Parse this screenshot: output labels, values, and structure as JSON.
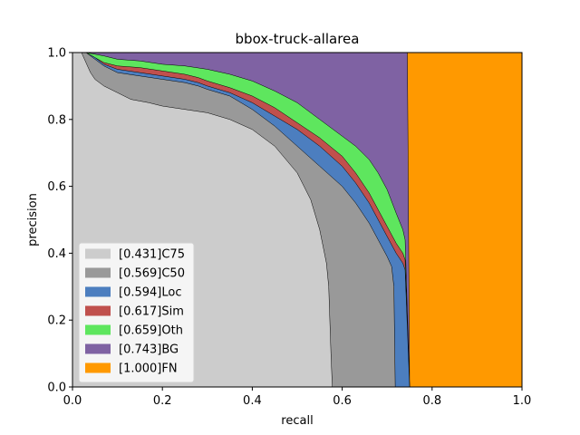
{
  "chart_data": {
    "type": "area",
    "title": "bbox-truck-allarea",
    "xlabel": "recall",
    "ylabel": "precision",
    "xlim": [
      0,
      1
    ],
    "ylim": [
      0,
      1
    ],
    "xticks": [
      "0.0",
      "0.2",
      "0.4",
      "0.6",
      "0.8",
      "1.0"
    ],
    "yticks": [
      "0.0",
      "0.2",
      "0.4",
      "0.6",
      "0.8",
      "1.0"
    ],
    "grid": false,
    "legend_position": "lower-left",
    "series": [
      {
        "name": "[0.431]C75",
        "color": "#cccccc",
        "points": [
          [
            0,
            1.0
          ],
          [
            0.02,
            1.0
          ],
          [
            0.03,
            0.97
          ],
          [
            0.04,
            0.94
          ],
          [
            0.05,
            0.92
          ],
          [
            0.07,
            0.9
          ],
          [
            0.1,
            0.88
          ],
          [
            0.13,
            0.86
          ],
          [
            0.17,
            0.85
          ],
          [
            0.2,
            0.84
          ],
          [
            0.25,
            0.83
          ],
          [
            0.3,
            0.82
          ],
          [
            0.35,
            0.8
          ],
          [
            0.4,
            0.77
          ],
          [
            0.45,
            0.72
          ],
          [
            0.5,
            0.64
          ],
          [
            0.53,
            0.56
          ],
          [
            0.55,
            0.47
          ],
          [
            0.565,
            0.37
          ],
          [
            0.57,
            0.3
          ],
          [
            0.575,
            0.1
          ],
          [
            0.578,
            0.0
          ]
        ]
      },
      {
        "name": "[0.569]C50",
        "color": "#999999",
        "points": [
          [
            0,
            1.0
          ],
          [
            0.03,
            1.0
          ],
          [
            0.05,
            0.98
          ],
          [
            0.07,
            0.96
          ],
          [
            0.1,
            0.94
          ],
          [
            0.15,
            0.93
          ],
          [
            0.2,
            0.92
          ],
          [
            0.25,
            0.91
          ],
          [
            0.28,
            0.9
          ],
          [
            0.3,
            0.89
          ],
          [
            0.35,
            0.87
          ],
          [
            0.4,
            0.83
          ],
          [
            0.45,
            0.78
          ],
          [
            0.5,
            0.72
          ],
          [
            0.55,
            0.66
          ],
          [
            0.6,
            0.6
          ],
          [
            0.63,
            0.55
          ],
          [
            0.66,
            0.49
          ],
          [
            0.68,
            0.44
          ],
          [
            0.7,
            0.39
          ],
          [
            0.71,
            0.36
          ],
          [
            0.715,
            0.3
          ],
          [
            0.718,
            0.0
          ]
        ]
      },
      {
        "name": "[0.594]Loc",
        "color": "#4c7ebf",
        "points": [
          [
            0,
            1.0
          ],
          [
            0.03,
            1.0
          ],
          [
            0.05,
            0.985
          ],
          [
            0.07,
            0.965
          ],
          [
            0.1,
            0.95
          ],
          [
            0.15,
            0.94
          ],
          [
            0.2,
            0.93
          ],
          [
            0.25,
            0.92
          ],
          [
            0.28,
            0.91
          ],
          [
            0.3,
            0.9
          ],
          [
            0.35,
            0.88
          ],
          [
            0.4,
            0.85
          ],
          [
            0.45,
            0.81
          ],
          [
            0.5,
            0.77
          ],
          [
            0.55,
            0.72
          ],
          [
            0.6,
            0.66
          ],
          [
            0.63,
            0.61
          ],
          [
            0.66,
            0.55
          ],
          [
            0.68,
            0.5
          ],
          [
            0.7,
            0.45
          ],
          [
            0.72,
            0.4
          ],
          [
            0.735,
            0.37
          ],
          [
            0.74,
            0.35
          ],
          [
            0.75,
            0.0
          ]
        ]
      },
      {
        "name": "[0.617]Sim",
        "color": "#c0504d",
        "points": [
          [
            0,
            1.0
          ],
          [
            0.03,
            1.0
          ],
          [
            0.05,
            0.985
          ],
          [
            0.07,
            0.97
          ],
          [
            0.1,
            0.96
          ],
          [
            0.15,
            0.955
          ],
          [
            0.2,
            0.945
          ],
          [
            0.25,
            0.935
          ],
          [
            0.28,
            0.925
          ],
          [
            0.3,
            0.915
          ],
          [
            0.35,
            0.895
          ],
          [
            0.4,
            0.87
          ],
          [
            0.45,
            0.835
          ],
          [
            0.5,
            0.79
          ],
          [
            0.55,
            0.745
          ],
          [
            0.6,
            0.69
          ],
          [
            0.63,
            0.64
          ],
          [
            0.66,
            0.58
          ],
          [
            0.68,
            0.53
          ],
          [
            0.7,
            0.48
          ],
          [
            0.72,
            0.43
          ],
          [
            0.735,
            0.4
          ],
          [
            0.74,
            0.38
          ],
          [
            0.75,
            0.0
          ]
        ]
      },
      {
        "name": "[0.659]Oth",
        "color": "#5ee65e",
        "points": [
          [
            0,
            1.0
          ],
          [
            0.03,
            1.0
          ],
          [
            0.05,
            0.995
          ],
          [
            0.07,
            0.99
          ],
          [
            0.1,
            0.98
          ],
          [
            0.15,
            0.975
          ],
          [
            0.2,
            0.965
          ],
          [
            0.25,
            0.96
          ],
          [
            0.3,
            0.95
          ],
          [
            0.35,
            0.935
          ],
          [
            0.4,
            0.915
          ],
          [
            0.45,
            0.885
          ],
          [
            0.5,
            0.85
          ],
          [
            0.55,
            0.8
          ],
          [
            0.6,
            0.75
          ],
          [
            0.63,
            0.72
          ],
          [
            0.66,
            0.68
          ],
          [
            0.68,
            0.64
          ],
          [
            0.7,
            0.59
          ],
          [
            0.72,
            0.52
          ],
          [
            0.735,
            0.47
          ],
          [
            0.74,
            0.44
          ],
          [
            0.75,
            0.0
          ]
        ]
      },
      {
        "name": "[0.743]BG",
        "color": "#7f62a3",
        "points": [
          [
            0,
            1.0
          ],
          [
            0.745,
            1.0
          ],
          [
            0.75,
            0.0
          ]
        ]
      },
      {
        "name": "[1.000]FN",
        "color": "#ff9900",
        "points": [
          [
            0,
            1.0
          ],
          [
            1.0,
            1.0
          ],
          [
            1.0,
            0.0
          ]
        ]
      }
    ]
  }
}
